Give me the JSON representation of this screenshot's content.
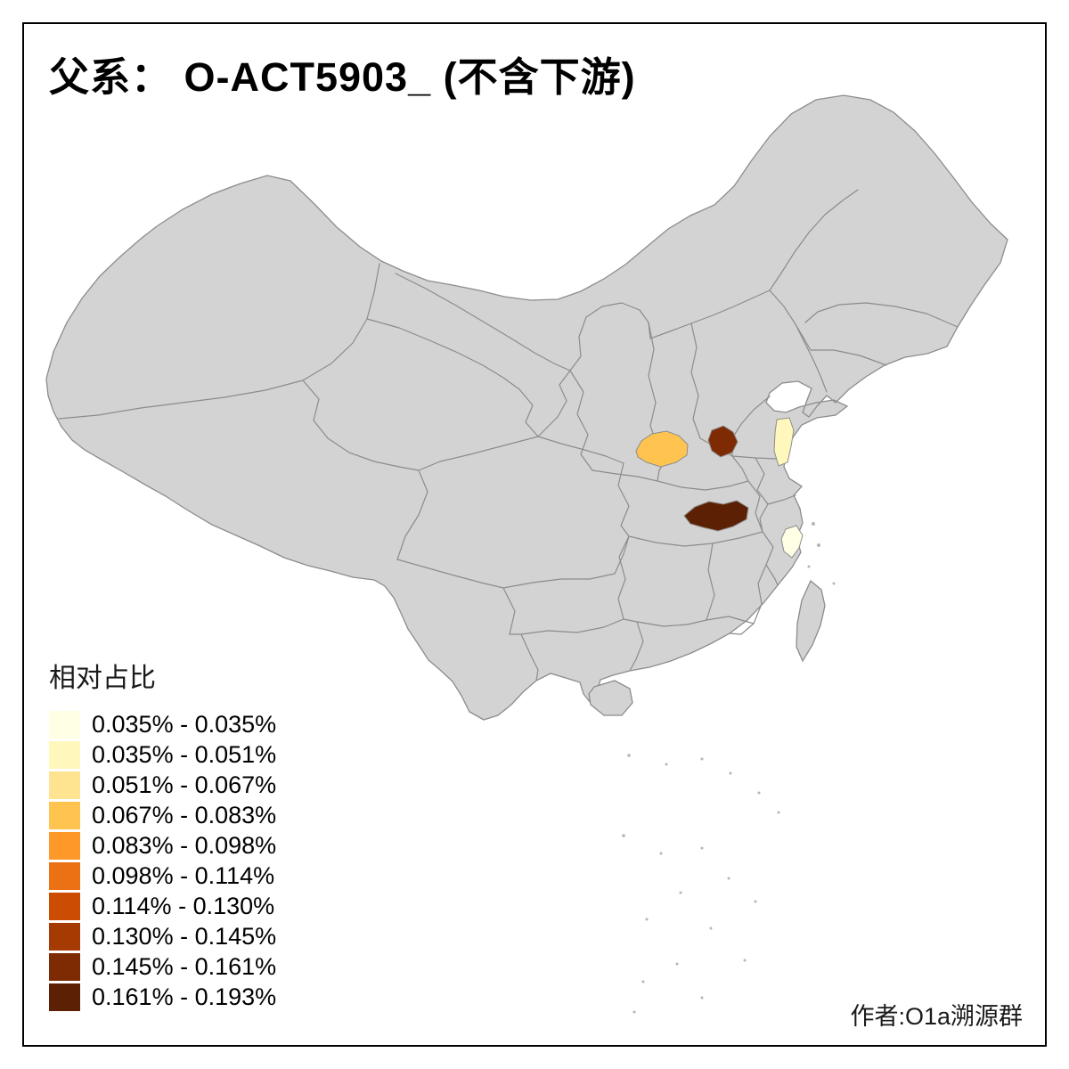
{
  "title": "父系： O-ACT5903_ (不含下游)",
  "author": "作者:O1a溯源群",
  "legend": {
    "title": "相对占比",
    "bins": [
      {
        "label": "0.035% - 0.035%",
        "color": "#FFFFE5"
      },
      {
        "label": "0.035% - 0.051%",
        "color": "#FFF7BC"
      },
      {
        "label": "0.051% - 0.067%",
        "color": "#FEE391"
      },
      {
        "label": "0.067% - 0.083%",
        "color": "#FEC44F"
      },
      {
        "label": "0.083% - 0.098%",
        "color": "#FE9929"
      },
      {
        "label": "0.098% - 0.114%",
        "color": "#EC7014"
      },
      {
        "label": "0.114% - 0.130%",
        "color": "#CC4C02"
      },
      {
        "label": "0.130% - 0.145%",
        "color": "#A63A03"
      },
      {
        "label": "0.145% - 0.161%",
        "color": "#7E2B04"
      },
      {
        "label": "0.161% - 0.193%",
        "color": "#5C2105"
      }
    ]
  },
  "map": {
    "base_color": "#D3D3D3",
    "border_color": "#8C8C8C",
    "background": "#FFFFFF",
    "small_islands_color": "#B5B5B5",
    "regions": [
      {
        "id": "highlight-1",
        "color": "#FEC44F",
        "bin": "0.067% - 0.083%"
      },
      {
        "id": "highlight-2",
        "color": "#7E2B04",
        "bin": "0.145% - 0.161%"
      },
      {
        "id": "highlight-3",
        "color": "#5C2105",
        "bin": "0.161% - 0.193%"
      },
      {
        "id": "highlight-4",
        "color": "#FFF7BC",
        "bin": "0.035% - 0.051%"
      },
      {
        "id": "highlight-5",
        "color": "#FFFFE5",
        "bin": "0.035% - 0.035%"
      }
    ]
  }
}
